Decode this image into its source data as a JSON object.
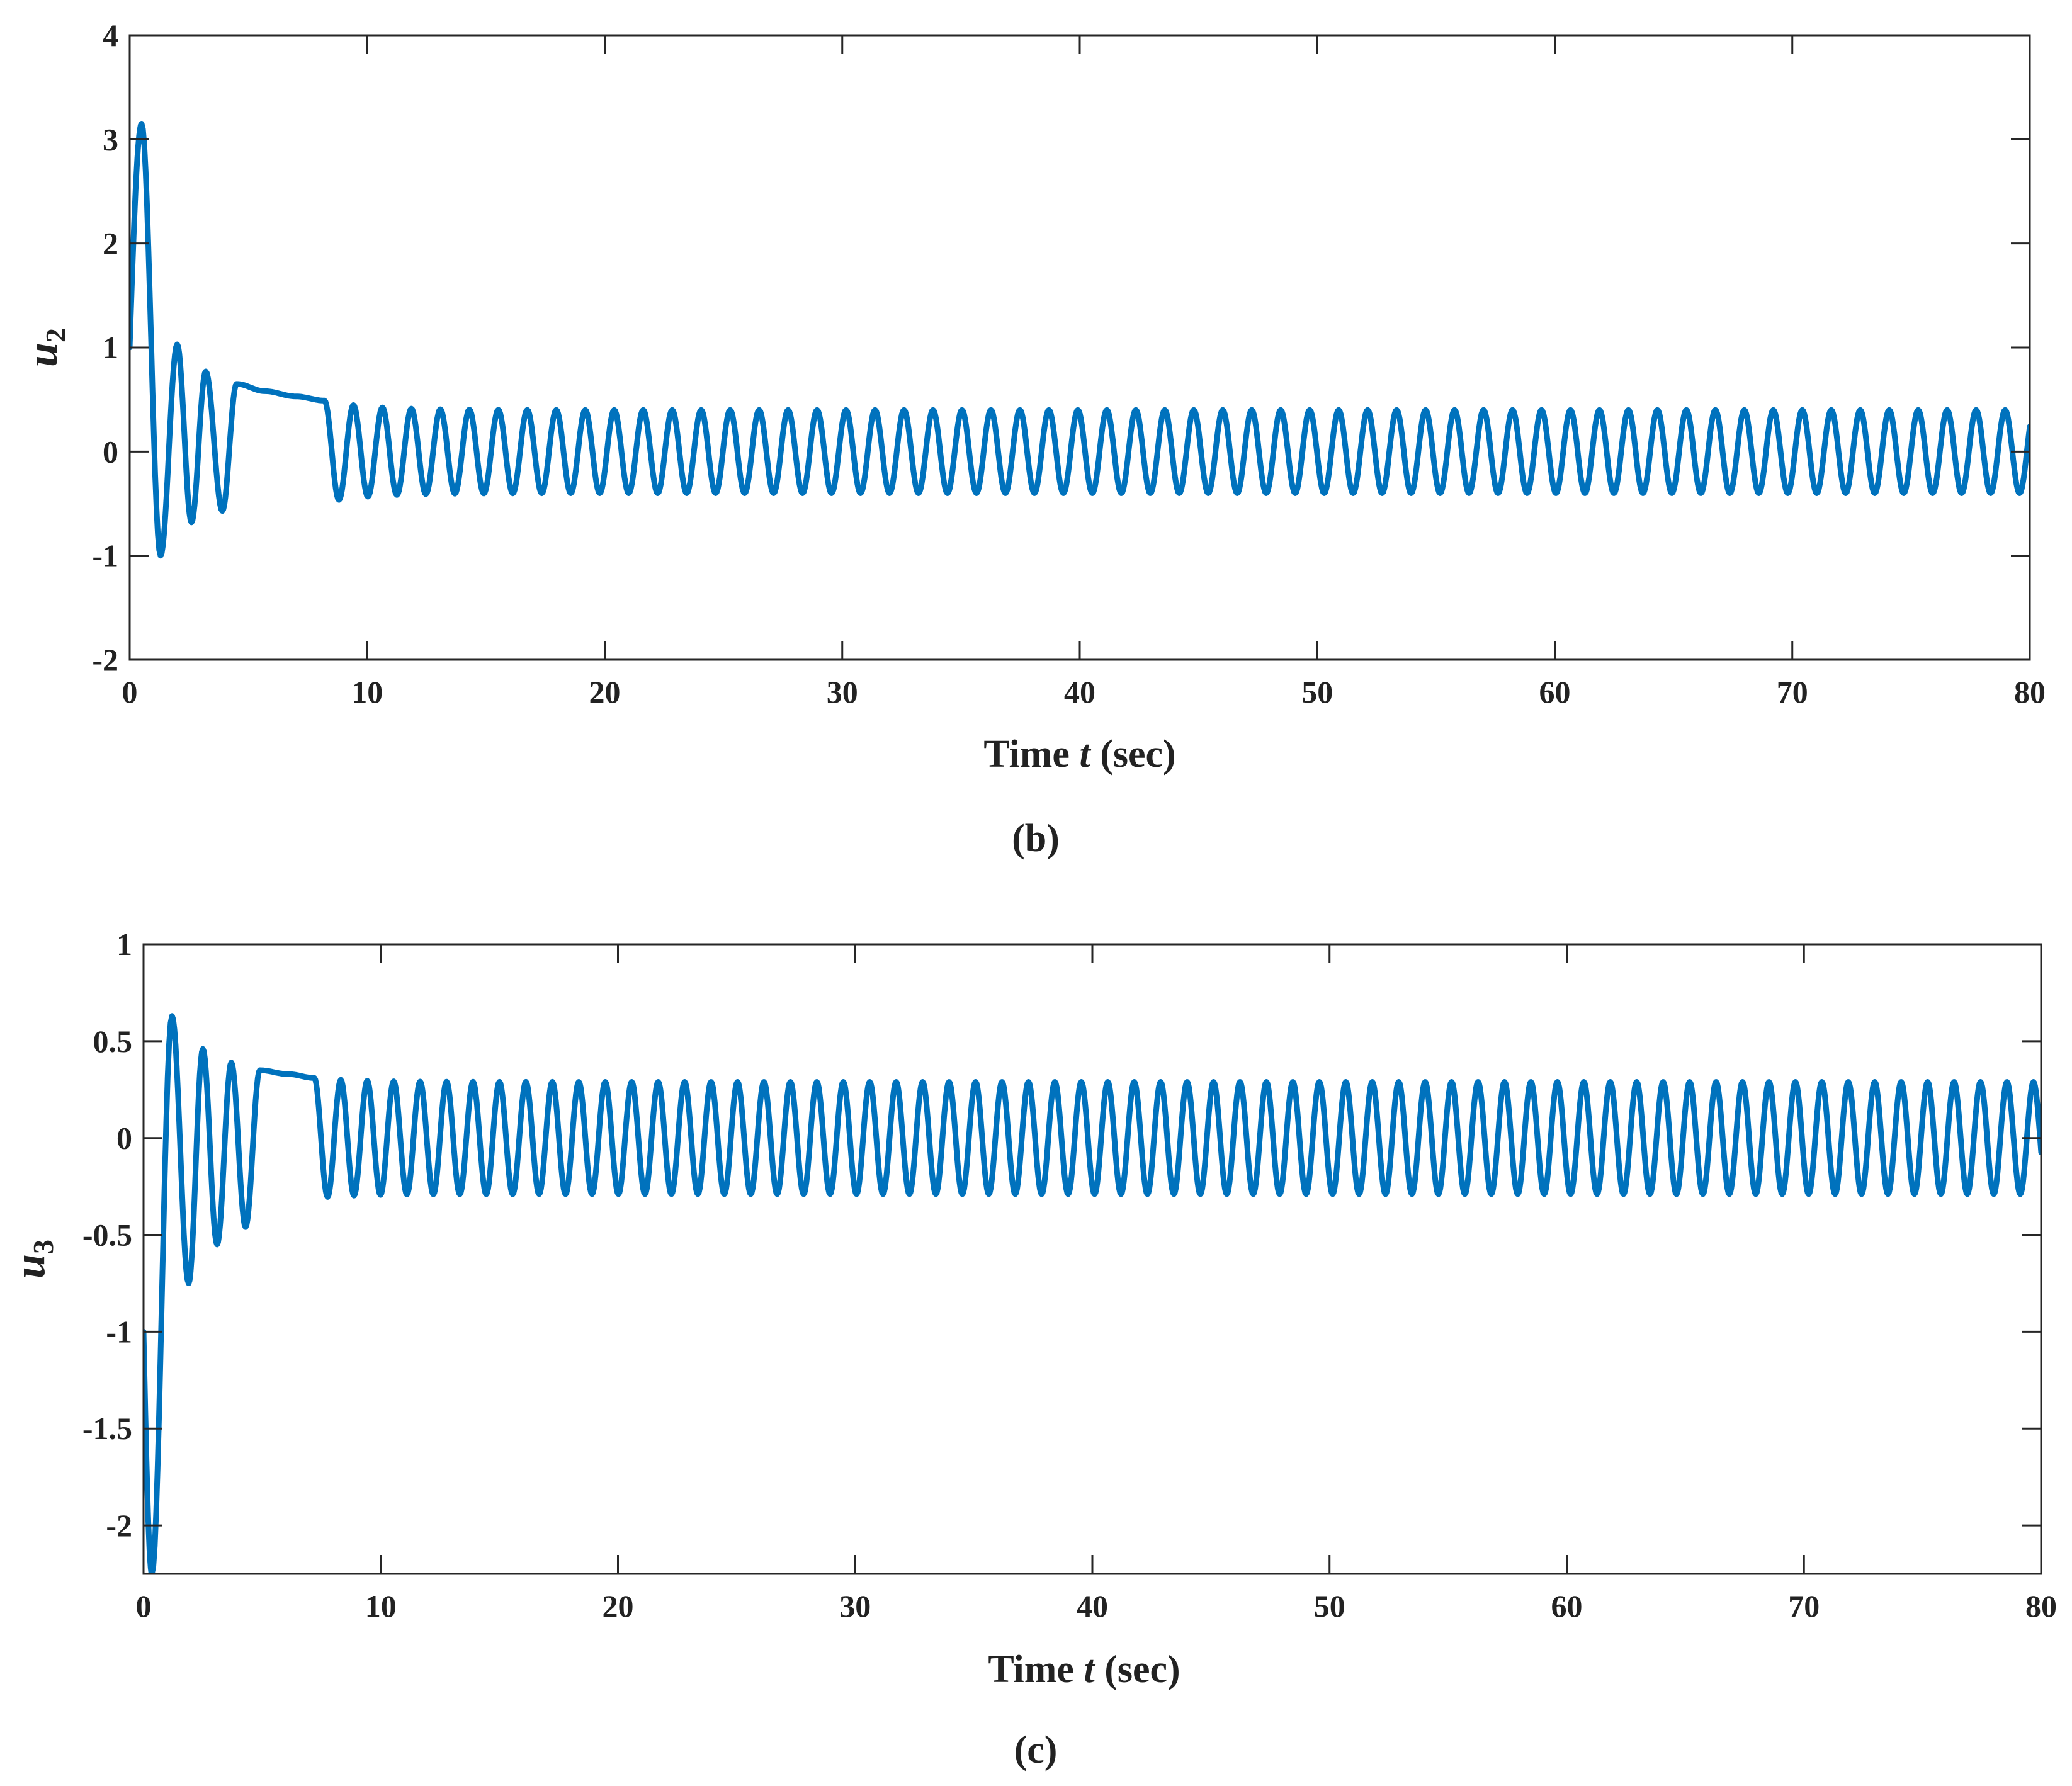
{
  "chart_data": [
    {
      "type": "line",
      "panel": "b",
      "caption": "(b)",
      "xlabel": {
        "prefix": "Time ",
        "var": "t",
        "suffix": " (sec)"
      },
      "ylabel": {
        "var": "u",
        "sub": "2"
      },
      "xlim": [
        0,
        80
      ],
      "ylim": [
        -2,
        4
      ],
      "xticks": [
        0,
        10,
        20,
        30,
        40,
        50,
        60,
        70,
        80
      ],
      "yticks": [
        -2,
        -1,
        0,
        1,
        2,
        3,
        4
      ],
      "ytick_labels": [
        "-2",
        "-1",
        "0",
        "1",
        "2",
        "3",
        "4"
      ],
      "series": [
        {
          "name": "u2",
          "color": "#0072BD",
          "description": "decaying oscillation settling to a steady sinusoid",
          "initial_value": 1.0,
          "steady_amplitude": 0.4,
          "period_sec": 1.22,
          "peaks": [
            {
              "t": 0.5,
              "y": 3.15
            },
            {
              "t": 1.3,
              "y": -1.0
            },
            {
              "t": 2.0,
              "y": 1.03
            },
            {
              "t": 2.6,
              "y": -0.68
            },
            {
              "t": 3.2,
              "y": 0.77
            },
            {
              "t": 3.9,
              "y": -0.57
            },
            {
              "t": 4.5,
              "y": 0.65
            },
            {
              "t": 5.7,
              "y": 0.58
            },
            {
              "t": 7.0,
              "y": 0.53
            },
            {
              "t": 8.2,
              "y": 0.49
            }
          ]
        }
      ]
    },
    {
      "type": "line",
      "panel": "c",
      "caption": "(c)",
      "xlabel": {
        "prefix": "Time ",
        "var": "t",
        "suffix": " (sec)"
      },
      "ylabel": {
        "var": "u",
        "sub": "3"
      },
      "xlim": [
        0,
        80
      ],
      "ylim": [
        -2.25,
        1
      ],
      "xticks": [
        0,
        10,
        20,
        30,
        40,
        50,
        60,
        70,
        80
      ],
      "yticks": [
        -2,
        -1.5,
        -1,
        -0.5,
        0,
        0.5,
        1
      ],
      "ytick_labels": [
        "-2",
        "-1.5",
        "-1",
        "-0.5",
        "0",
        "0.5",
        "1"
      ],
      "series": [
        {
          "name": "u3",
          "color": "#0072BD",
          "description": "decaying oscillation settling to a steady sinusoid",
          "initial_value": -1.0,
          "steady_amplitude": 0.29,
          "period_sec": 1.115,
          "peaks": [
            {
              "t": 0.35,
              "y": -2.25
            },
            {
              "t": 1.2,
              "y": 0.63
            },
            {
              "t": 1.9,
              "y": -0.75
            },
            {
              "t": 2.5,
              "y": 0.46
            },
            {
              "t": 3.1,
              "y": -0.55
            },
            {
              "t": 3.7,
              "y": 0.39
            },
            {
              "t": 4.3,
              "y": -0.46
            },
            {
              "t": 4.9,
              "y": 0.35
            },
            {
              "t": 6.1,
              "y": 0.33
            },
            {
              "t": 7.2,
              "y": 0.31
            }
          ]
        }
      ]
    }
  ]
}
